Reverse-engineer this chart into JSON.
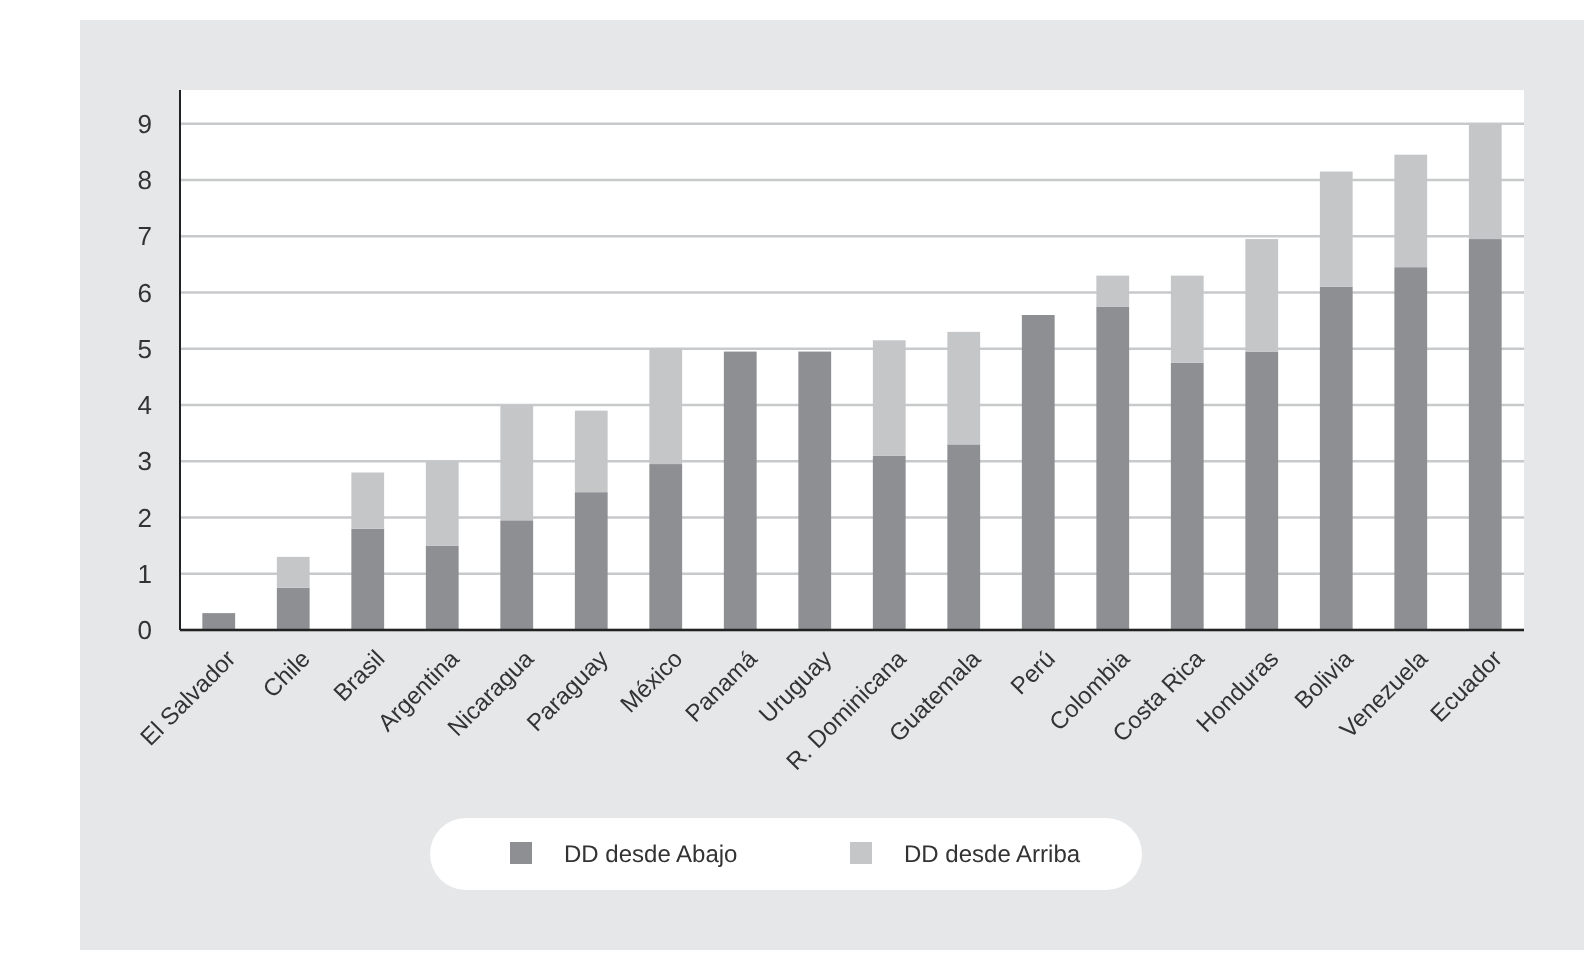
{
  "chart_data": {
    "type": "bar",
    "stacked": true,
    "categories": [
      "El Salvador",
      "Chile",
      "Brasil",
      "Argentina",
      "Nicaragua",
      "Paraguay",
      "México",
      "Panamá",
      "Uruguay",
      "R. Dominicana",
      "Guatemala",
      "Perú",
      "Colombia",
      "Costa Rica",
      "Honduras",
      "Bolivia",
      "Venezuela",
      "Ecuador"
    ],
    "series": [
      {
        "name": "DD desde Abajo",
        "color": "#8e8f93",
        "values": [
          0.3,
          0.75,
          1.8,
          1.5,
          1.95,
          2.45,
          2.95,
          4.95,
          4.95,
          3.1,
          3.3,
          5.6,
          5.75,
          4.75,
          4.95,
          6.1,
          6.45,
          6.95
        ]
      },
      {
        "name": "DD desde Arriba",
        "color": "#c5c6c8",
        "values": [
          null,
          0.55,
          1.0,
          1.5,
          2.05,
          1.45,
          2.05,
          null,
          null,
          2.05,
          2.0,
          null,
          0.55,
          1.55,
          2.0,
          2.05,
          2.0,
          2.05
        ]
      }
    ],
    "ylim": [
      0,
      9.6
    ],
    "yticks": [
      0,
      1,
      2,
      3,
      4,
      5,
      6,
      7,
      8,
      9
    ],
    "grid": "y",
    "legend": "bottom"
  }
}
